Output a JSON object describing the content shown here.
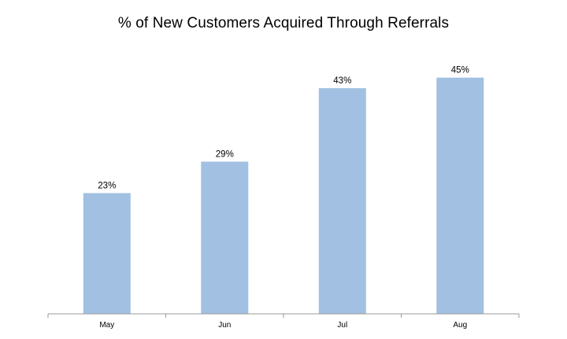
{
  "chart_data": {
    "type": "bar",
    "title": "% of New Customers Acquired Through Referrals",
    "xlabel": "",
    "ylabel": "",
    "categories": [
      "May",
      "Jun",
      "Jul",
      "Aug"
    ],
    "values": [
      23,
      29,
      43,
      45
    ],
    "data_labels": [
      "23%",
      "29%",
      "43%",
      "45%"
    ],
    "ylim": [
      0,
      52
    ],
    "grid": false,
    "legend": "none",
    "bar_color": "#a2c0e1",
    "axis_color": "#9a9a9a"
  }
}
